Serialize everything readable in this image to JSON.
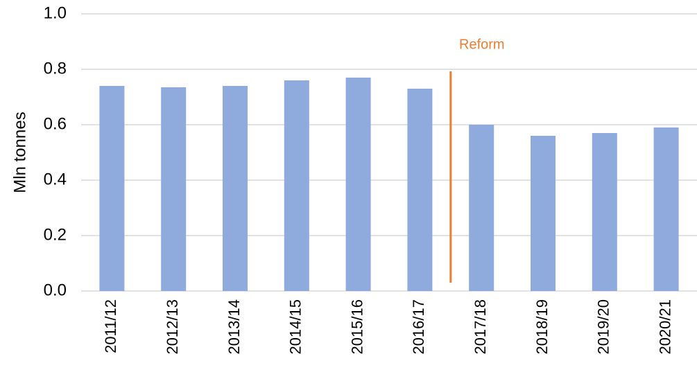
{
  "chart_data": {
    "type": "bar",
    "y_axis_label": "Mln tonnes",
    "categories": [
      "2011/12",
      "2012/13",
      "2013/14",
      "2014/15",
      "2015/16",
      "2016/17",
      "2017/18",
      "2018/19",
      "2019/20",
      "2020/21"
    ],
    "values": [
      0.74,
      0.735,
      0.74,
      0.76,
      0.77,
      0.73,
      0.6,
      0.56,
      0.57,
      0.59
    ],
    "color": "#8faadc",
    "ylim": [
      0,
      1
    ],
    "yticks": [
      {
        "value": 0,
        "label": "0.0"
      },
      0.2,
      0.4,
      0.6,
      0.8,
      {
        "value": 1,
        "label": "1.0"
      }
    ],
    "grid": true,
    "annotation": {
      "text": "Reform",
      "color": "#ed7d31"
    }
  }
}
